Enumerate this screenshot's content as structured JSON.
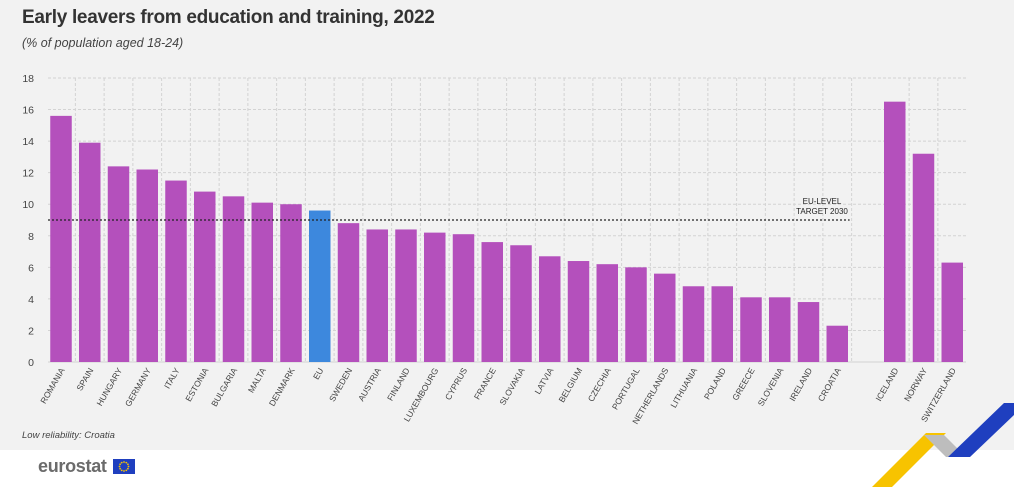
{
  "header": {
    "title": "Early leavers from education and training, 2022",
    "subtitle": "(% of population aged 18-24)"
  },
  "note": "Low reliability: Croatia",
  "brand": {
    "name": "eurostat"
  },
  "colors": {
    "bar": "#b450bc",
    "highlight": "#3d88dd",
    "grid": "#d3d3d3",
    "axis_text": "#444444",
    "logo_gray": "#6b6b6b",
    "eu_blue": "#1f3fbf",
    "accent_yellow": "#f7c300"
  },
  "chart_data": {
    "type": "bar",
    "categories": [
      "ROMANIA",
      "SPAIN",
      "HUNGARY",
      "GERMANY",
      "ITALY",
      "ESTONIA",
      "BULGARIA",
      "MALTA",
      "DENMARK",
      "EU",
      "SWEDEN",
      "AUSTRIA",
      "FINLAND",
      "LUXEMBOURG",
      "CYPRUS",
      "FRANCE",
      "SLOVAKIA",
      "LATVIA",
      "BELGIUM",
      "CZECHIA",
      "PORTUGAL",
      "NETHERLANDS",
      "LITHUANIA",
      "POLAND",
      "GREECE",
      "SLOVENIA",
      "IRELAND",
      "CROATIA",
      "ICELAND",
      "NORWAY",
      "SWITZERLAND"
    ],
    "values": [
      15.6,
      13.9,
      12.4,
      12.2,
      11.5,
      10.8,
      10.5,
      10.1,
      10.0,
      9.6,
      8.8,
      8.4,
      8.4,
      8.2,
      8.1,
      7.6,
      7.4,
      6.7,
      6.4,
      6.2,
      6.0,
      5.6,
      4.8,
      4.8,
      4.1,
      4.1,
      3.8,
      2.3,
      16.5,
      13.2,
      6.3
    ],
    "highlight": "EU",
    "ylim": [
      0,
      18
    ],
    "yticks": [
      0,
      2,
      4,
      6,
      8,
      10,
      12,
      14,
      16,
      18
    ],
    "grid": true,
    "reference_line": {
      "value": 9,
      "label_lines": [
        "EU-LEVEL",
        "TARGET 2030"
      ]
    },
    "gap_before": "ICELAND"
  }
}
